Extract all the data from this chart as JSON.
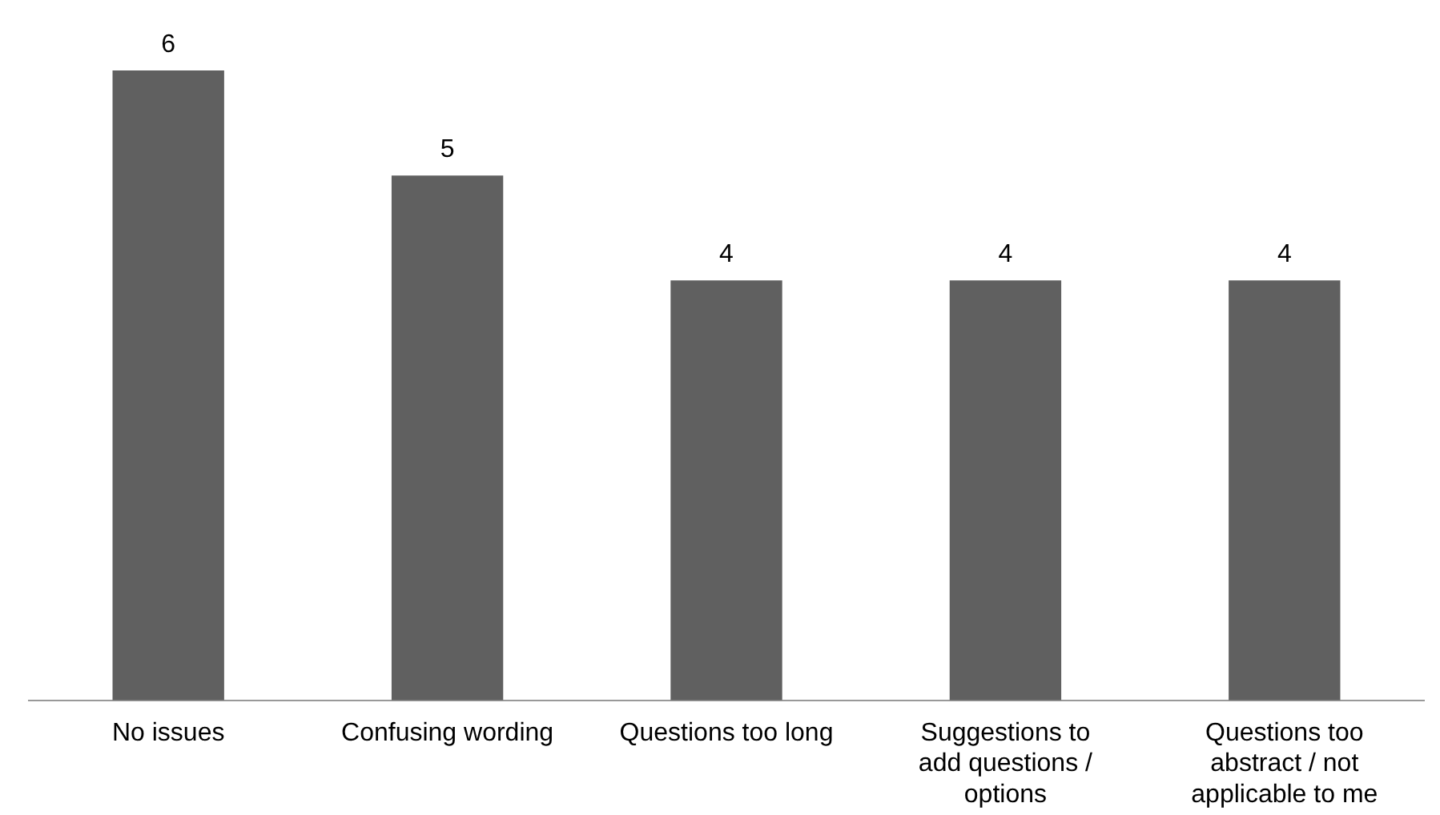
{
  "chart_data": {
    "type": "bar",
    "categories": [
      "No issues",
      "Confusing wording",
      "Questions too long",
      "Suggestions to add questions / options",
      "Questions too abstract / not applicable to me"
    ],
    "values": [
      6,
      5,
      4,
      4,
      4
    ],
    "color": "#606060",
    "data_labels": true,
    "relative": false,
    "grid": false,
    "legend": false
  }
}
